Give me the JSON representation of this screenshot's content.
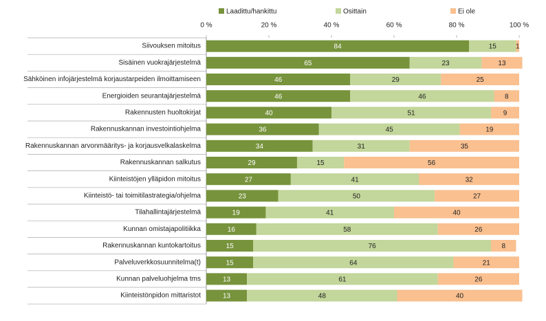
{
  "chart_data": {
    "type": "stacked-bar-horizontal",
    "categories": [
      "Siivouksen mitoitus",
      "Sisäinen vuokrajärjestelmä",
      "Sähköinen infojärjestelmä korjaustarpeiden ilmoittamiseen",
      "Energioiden seurantajärjestelmä",
      "Rakennusten huoltokirjat",
      "Rakennuskannan investointiohjelma",
      "Rakennuskannan arvonmääritys- ja korjausvelkalaskelma",
      "Rakennuskannan salkutus",
      "Kiinteistöjen ylläpidon mitoitus",
      "Kiinteistö- tai toimitilastrategia/ohjelma",
      "Tilahallintajärjestelmä",
      "Kunnan omistajapolitiikka",
      "Rakennuskannan kuntokartoitus",
      "Palveluverkkosuunnitelma(t)",
      "Kunnan palveluohjelma tms",
      "Kiinteistönpidon mittaristot"
    ],
    "series": [
      {
        "name": "Laadittu/hankittu",
        "color": "#77933c",
        "label_color": "#ffffff",
        "values": [
          84,
          65,
          46,
          46,
          40,
          36,
          34,
          29,
          27,
          23,
          19,
          16,
          15,
          15,
          13,
          13
        ]
      },
      {
        "name": "Osittain",
        "color": "#c3d69b",
        "label_color": "#222222",
        "values": [
          15,
          23,
          29,
          46,
          51,
          45,
          31,
          15,
          41,
          50,
          41,
          58,
          76,
          64,
          61,
          48
        ]
      },
      {
        "name": "Ei ole",
        "color": "#fac090",
        "label_color": "#222222",
        "values": [
          1,
          13,
          25,
          8,
          9,
          19,
          35,
          56,
          32,
          27,
          40,
          26,
          8,
          21,
          26,
          40
        ]
      }
    ],
    "xlim": [
      0,
      100
    ],
    "xticks": [
      {
        "value": 0,
        "label": "0 %"
      },
      {
        "value": 20,
        "label": "20 %"
      },
      {
        "value": 40,
        "label": "40 %"
      },
      {
        "value": 60,
        "label": "60 %"
      },
      {
        "value": 80,
        "label": "80 %"
      },
      {
        "value": 100,
        "label": "100 %"
      }
    ],
    "legend": "top"
  }
}
